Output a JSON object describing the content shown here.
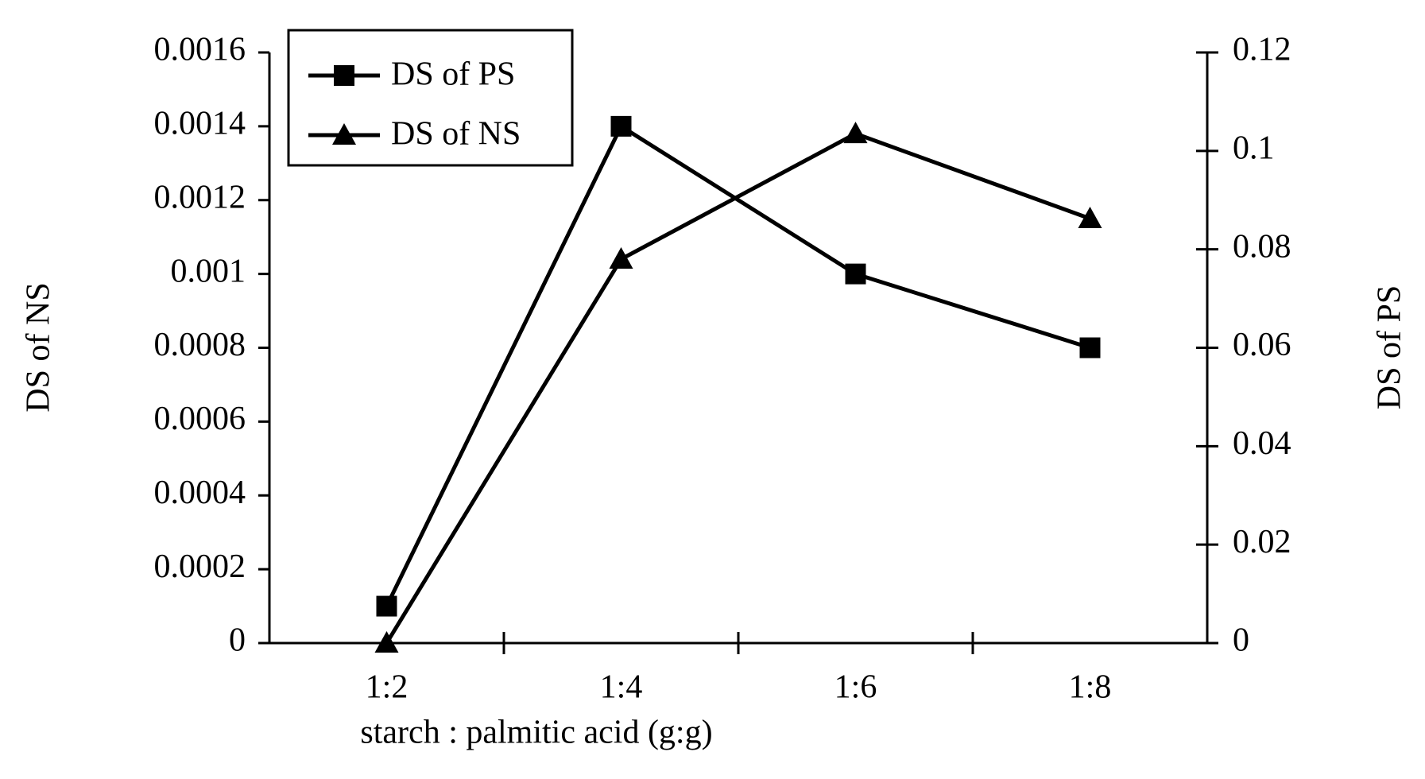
{
  "chart_data": {
    "type": "line",
    "x_label": "starch : palmitic acid (g:g)",
    "y_label": "DS of NS",
    "y2_label": "DS of PS",
    "categories": [
      "1:2",
      "1:4",
      "1:6",
      "1:8"
    ],
    "series": [
      {
        "name": "DS of PS",
        "color": "#000000",
        "marker": "square",
        "axis": "y2",
        "values": [
          0.0075,
          0.105,
          0.075,
          0.06
        ]
      },
      {
        "name": "DS of NS",
        "color": "#000000",
        "marker": "triangle",
        "values": [
          0,
          0.00104,
          0.00138,
          0.00115
        ]
      }
    ],
    "ylim": [
      0,
      0.0016
    ],
    "yticks": [
      0,
      0.0002,
      0.0004,
      0.0006,
      0.0008,
      0.001,
      0.0012,
      0.0014,
      0.0016
    ],
    "y2lim": [
      0,
      0.12
    ],
    "y2ticks": [
      0,
      0.02,
      0.04,
      0.06,
      0.08,
      0.1,
      0.12
    ],
    "legend": "top-left",
    "grid": false
  }
}
